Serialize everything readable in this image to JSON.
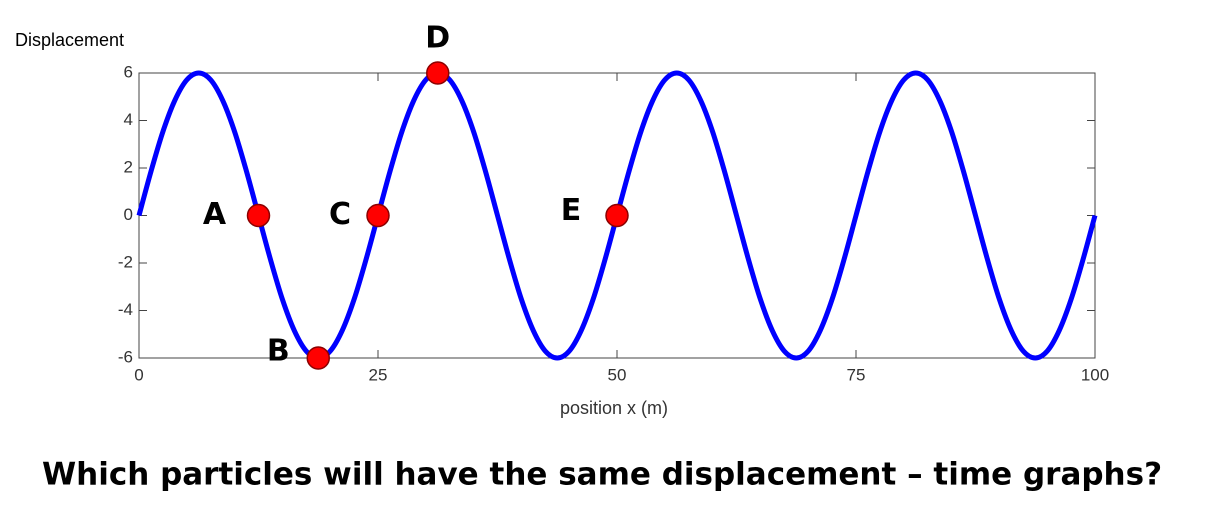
{
  "chart_data": {
    "type": "line",
    "y_label": "Displacement",
    "x_label": "position  x (m)",
    "question": "Which particles will have the same displacement – time graphs?",
    "xlim": [
      0,
      100
    ],
    "xticks": [
      0,
      25,
      50,
      75,
      100
    ],
    "ylim": [
      -6,
      6
    ],
    "yticks": [
      -6,
      -4,
      -2,
      0,
      2,
      4,
      6
    ],
    "series": [
      {
        "color": "#0000ff",
        "x": [
          0,
          1.25,
          2.5,
          3.75,
          5,
          6.25,
          7.5,
          8.75,
          10,
          11.25,
          12.5,
          13.75,
          15,
          16.25,
          17.5,
          18.75,
          20,
          21.25,
          22.5,
          23.75,
          25,
          26.25,
          27.5,
          28.75,
          30,
          31.25,
          32.5,
          33.75,
          35,
          36.25,
          37.5,
          38.75,
          40,
          41.25,
          42.5,
          43.75,
          45,
          46.25,
          47.5,
          48.75,
          50,
          51.25,
          52.5,
          53.75,
          55,
          56.25,
          57.5,
          58.75,
          60,
          61.25,
          62.5,
          63.75,
          65,
          66.25,
          67.5,
          68.75,
          70,
          71.25,
          72.5,
          73.75,
          75,
          76.25,
          77.5,
          78.75,
          80,
          81.25,
          82.5,
          83.75,
          85,
          86.25,
          87.5,
          88.75,
          90,
          91.25,
          92.5,
          93.75,
          95,
          96.25,
          97.5,
          98.75,
          100
        ],
        "values": [
          0,
          1.85,
          3.53,
          4.85,
          5.71,
          6,
          5.71,
          4.85,
          3.53,
          1.85,
          0,
          -1.85,
          -3.53,
          -4.85,
          -5.71,
          -6,
          -5.71,
          -4.85,
          -3.53,
          -1.85,
          0,
          1.85,
          3.53,
          4.85,
          5.71,
          6,
          5.71,
          4.85,
          3.53,
          1.85,
          0,
          -1.85,
          -3.53,
          -4.85,
          -5.71,
          -6,
          -5.71,
          -4.85,
          -3.53,
          -1.85,
          0,
          1.85,
          3.53,
          4.85,
          5.71,
          6,
          5.71,
          4.85,
          3.53,
          1.85,
          0,
          -1.85,
          -3.53,
          -4.85,
          -5.71,
          -6,
          -5.71,
          -4.85,
          -3.53,
          -1.85,
          0,
          1.85,
          3.53,
          4.85,
          5.71,
          6,
          5.71,
          4.85,
          3.53,
          1.85,
          0,
          -1.85,
          -3.53,
          -4.85,
          -5.71,
          -6,
          -5.71,
          -4.85,
          -3.53,
          -1.85,
          0
        ]
      }
    ],
    "particles": {
      "color": "#ff0000",
      "labels": [
        "A",
        "B",
        "C",
        "D",
        "E"
      ],
      "x": [
        12.5,
        18.75,
        25,
        31.25,
        50
      ],
      "values": [
        0,
        -6,
        0,
        6,
        0
      ]
    }
  }
}
